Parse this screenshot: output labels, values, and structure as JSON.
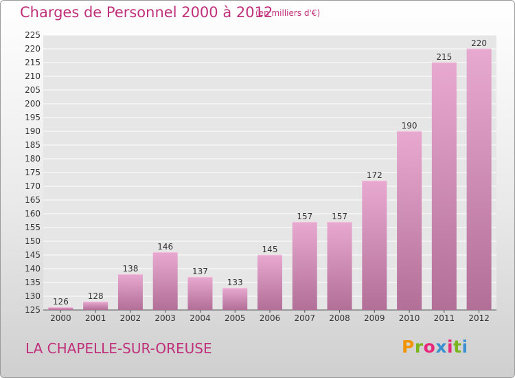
{
  "header": {
    "title": "Charges de Personnel 2000 à 2012",
    "subtitle": "(en milliers d'€)"
  },
  "footer": {
    "place": "LA CHAPELLE-SUR-OREUSE",
    "logo_text": "Proxiti"
  },
  "logo_colors": [
    "#f29400",
    "#7ab51d",
    "#e5287a",
    "#3a8fd1",
    "#e5287a",
    "#7ab51d",
    "#3a8fd1"
  ],
  "colors": {
    "bar_light": "#e8a9d0",
    "bar_dark": "#b26f98",
    "text_accent": "#c0307a",
    "grid": "#ffffff"
  },
  "chart_data": {
    "type": "bar",
    "categories": [
      "2000",
      "2001",
      "2002",
      "2003",
      "2004",
      "2005",
      "2006",
      "2007",
      "2008",
      "2009",
      "2010",
      "2011",
      "2012"
    ],
    "values": [
      126,
      128,
      138,
      146,
      137,
      133,
      145,
      157,
      157,
      172,
      190,
      215,
      220
    ],
    "ylim": [
      125,
      225
    ],
    "yticks": [
      125,
      130,
      135,
      140,
      145,
      150,
      155,
      160,
      165,
      170,
      175,
      180,
      185,
      190,
      195,
      200,
      205,
      210,
      215,
      220,
      225
    ],
    "grid": true,
    "data_labels": true
  }
}
